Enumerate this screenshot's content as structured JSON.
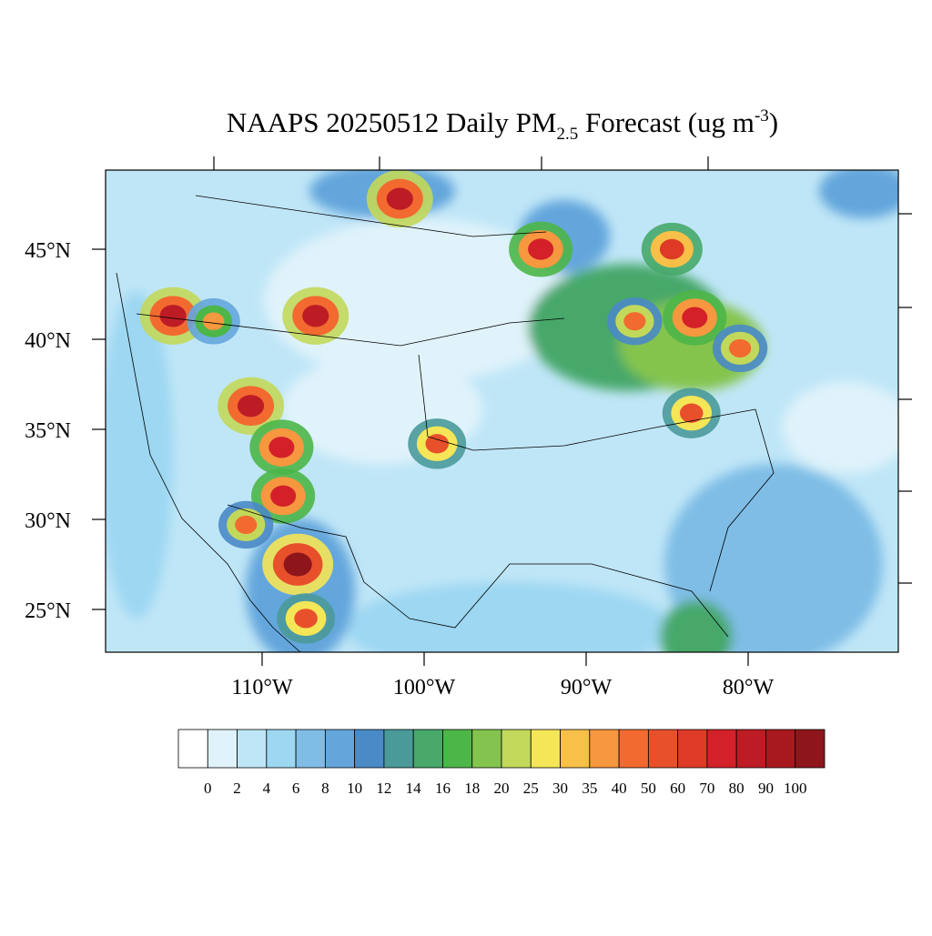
{
  "title": {
    "main": "NAAPS 20250512 Daily PM",
    "sub": "2.5",
    "rest": " Forecast (ug m",
    "sup": "-3",
    "end": ")"
  },
  "map": {
    "lat_labels": [
      {
        "value": 45,
        "label": "45°N"
      },
      {
        "value": 40,
        "label": "40°N"
      },
      {
        "value": 35,
        "label": "35°N"
      },
      {
        "value": 30,
        "label": "30°N"
      },
      {
        "value": 25,
        "label": "25°N"
      }
    ],
    "lon_labels": [
      {
        "value": -110,
        "label": "110°W"
      },
      {
        "value": -100,
        "label": "100°W"
      },
      {
        "value": -90,
        "label": "90°W"
      },
      {
        "value": -80,
        "label": "80°W"
      }
    ],
    "hotspots": [
      {
        "lon": -107.8,
        "lat": 27.5,
        "value": 100
      },
      {
        "lon": -110.7,
        "lat": 36.3,
        "value": 80
      },
      {
        "lon": -108.8,
        "lat": 34.0,
        "value": 70
      },
      {
        "lon": -108.7,
        "lat": 31.3,
        "value": 70
      },
      {
        "lon": -111.0,
        "lat": 29.7,
        "value": 40
      },
      {
        "lon": -115.5,
        "lat": 41.3,
        "value": 80
      },
      {
        "lon": -106.7,
        "lat": 41.3,
        "value": 80
      },
      {
        "lon": -101.5,
        "lat": 47.8,
        "value": 80
      },
      {
        "lon": -92.8,
        "lat": 45.0,
        "value": 70
      },
      {
        "lon": -84.7,
        "lat": 45.0,
        "value": 60
      },
      {
        "lon": -83.3,
        "lat": 41.2,
        "value": 70
      },
      {
        "lon": -87.0,
        "lat": 41.0,
        "value": 40
      },
      {
        "lon": -80.5,
        "lat": 39.5,
        "value": 40
      },
      {
        "lon": -83.5,
        "lat": 35.9,
        "value": 50
      },
      {
        "lon": -99.2,
        "lat": 34.2,
        "value": 50
      },
      {
        "lon": -107.3,
        "lat": 24.5,
        "value": 50
      },
      {
        "lon": -113.0,
        "lat": 41.0,
        "value": 35
      }
    ]
  },
  "colorbar": {
    "levels": [
      0,
      2,
      4,
      6,
      8,
      10,
      12,
      14,
      16,
      18,
      20,
      25,
      30,
      35,
      40,
      50,
      60,
      70,
      80,
      90,
      100
    ],
    "colors": [
      "#ffffff",
      "#e0f3fb",
      "#bfe6f7",
      "#9dd7f2",
      "#7fbde6",
      "#64a6dc",
      "#4a8ac6",
      "#4a9a9a",
      "#47a86a",
      "#4db648",
      "#84c44e",
      "#c2d85a",
      "#f5e657",
      "#f8c048",
      "#f7973f",
      "#f26a30",
      "#e8502c",
      "#de3a26",
      "#d32029",
      "#bd1c25",
      "#a8191f",
      "#8e161b"
    ]
  }
}
